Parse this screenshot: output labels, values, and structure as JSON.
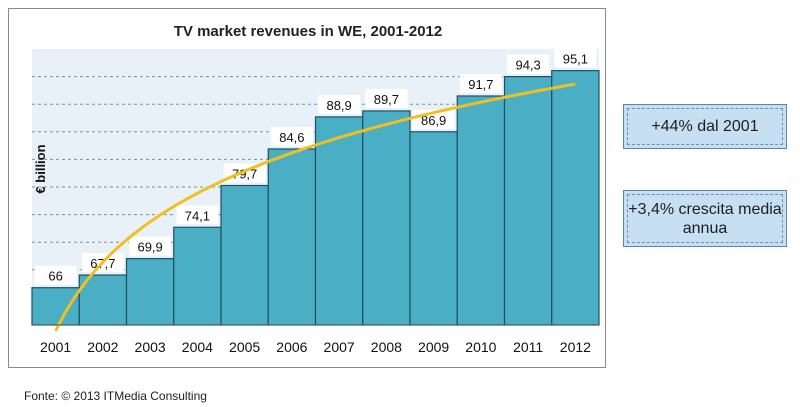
{
  "chart_data": {
    "type": "bar",
    "title": "TV market revenues in WE, 2001-2012",
    "ylabel": "€ billion",
    "xlabel": "",
    "categories": [
      "2001",
      "2002",
      "2003",
      "2004",
      "2005",
      "2006",
      "2007",
      "2008",
      "2009",
      "2010",
      "2011",
      "2012"
    ],
    "values": [
      66,
      67.7,
      69.9,
      74.1,
      79.7,
      84.6,
      88.9,
      89.7,
      86.9,
      91.7,
      94.3,
      95.1
    ],
    "value_labels": [
      "66",
      "67,7",
      "69,9",
      "74,1",
      "79,7",
      "84,6",
      "88,9",
      "89,7",
      "86,9",
      "91,7",
      "94,3",
      "95,1"
    ],
    "ylim": [
      61,
      98
    ],
    "grid": true,
    "trendline": true,
    "colors": {
      "bar": "#4aaec4",
      "bar_edge": "#1f4f68",
      "trend": "#f0c020",
      "plot_bg": "#e8f1f8",
      "grid": "#7d8f9e"
    }
  },
  "callouts": [
    "+44% dal 2001",
    "+3,4% crescita media annua"
  ],
  "source": "Fonte: © 2013 ITMedia Consulting"
}
